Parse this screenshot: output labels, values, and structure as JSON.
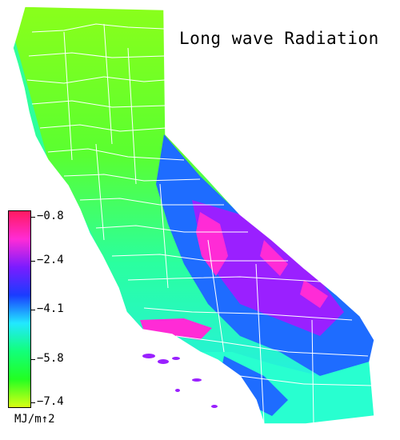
{
  "title": "Long wave Radiation",
  "legend": {
    "unit": "MJ/m↑2",
    "ticks": [
      "−0.8",
      "−2.4",
      "−4.1",
      "−5.8",
      "−7.4"
    ],
    "colors": [
      "#ff1a60",
      "#ff2bd6",
      "#7a1cff",
      "#1a3cff",
      "#22e8ff",
      "#12ff7a",
      "#22ff22",
      "#d8ff14"
    ]
  },
  "map": {
    "region": "California",
    "land_colors": {
      "north": "#6cff1a",
      "coast": "#24ffb0",
      "valley": "#5aff30",
      "sierra": "#1e6cff",
      "desert_high": "#9a20ff",
      "peaks": "#ff2bd6",
      "south": "#28ffd0",
      "boundary": "#ffffff"
    }
  }
}
